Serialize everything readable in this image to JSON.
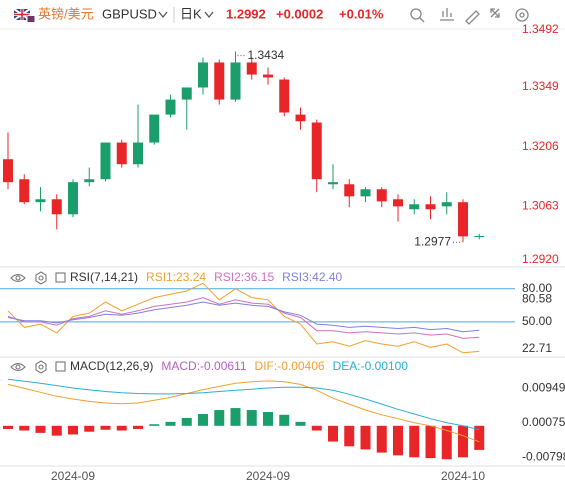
{
  "header": {
    "pair": "英镑/美元",
    "symbol": "GBPUSD",
    "period": "日K",
    "price": "1.2992",
    "change": "+0.0002",
    "change_pct": "+0.01%"
  },
  "chart_data": [
    {
      "type": "candlestick",
      "categories": [
        null,
        null,
        null,
        null,
        "2024-09",
        null,
        null,
        null,
        null,
        null,
        null,
        null,
        null,
        null,
        null,
        null,
        "2024-09",
        null,
        null,
        null,
        null,
        null,
        null,
        null,
        null,
        null,
        null,
        null,
        "2024-10",
        null
      ],
      "open": [
        1.3176,
        1.3128,
        1.3073,
        1.308,
        1.3044,
        1.3121,
        1.3128,
        1.3216,
        1.3164,
        1.3216,
        1.3283,
        1.3319,
        1.3348,
        1.3408,
        1.3319,
        1.3408,
        1.3379,
        1.3367,
        1.3283,
        1.3264,
        1.3116,
        1.3116,
        1.3087,
        1.3104,
        1.308,
        1.3056,
        1.3068,
        1.3063,
        1.3073,
        1.299
      ],
      "high": [
        1.324,
        1.314,
        1.3109,
        1.3092,
        1.3128,
        1.3156,
        1.3216,
        1.3223,
        1.3307,
        1.3283,
        1.3331,
        1.3348,
        1.342,
        1.3415,
        1.3434,
        1.342,
        1.3396,
        1.3372,
        1.33,
        1.3271,
        1.3164,
        1.3128,
        1.3109,
        1.3109,
        1.3092,
        1.308,
        1.3087,
        1.3097,
        1.308,
        1.2997
      ],
      "low": [
        1.3104,
        1.3068,
        1.3051,
        1.3008,
        1.3037,
        1.3111,
        1.3123,
        1.3156,
        1.3156,
        1.3211,
        1.3276,
        1.3247,
        1.3331,
        1.3307,
        1.3314,
        1.3367,
        1.3355,
        1.3279,
        1.3247,
        1.3097,
        1.3104,
        1.3061,
        1.3073,
        1.3061,
        1.3027,
        1.3044,
        1.3032,
        1.3044,
        1.2977,
        1.2984
      ],
      "close": [
        1.3121,
        1.3073,
        1.308,
        1.3044,
        1.3121,
        1.3128,
        1.3216,
        1.3164,
        1.3216,
        1.3283,
        1.3319,
        1.3348,
        1.3408,
        1.3319,
        1.3408,
        1.3379,
        1.3372,
        1.3288,
        1.3267,
        1.3128,
        1.3121,
        1.3087,
        1.3104,
        1.3075,
        1.3063,
        1.3068,
        1.3056,
        1.3073,
        1.2991,
        1.2992
      ],
      "up_color": "#1a9e6b",
      "down_color": "#e8262a",
      "annotations": [
        1.3434,
        1.2977
      ],
      "ylim": [
        1.292,
        1.3505
      ],
      "yticks": [
        1.3492,
        1.3349,
        1.3206,
        1.3063,
        {
          "value": 1.292,
          "label": "1.2920"
        }
      ],
      "tick_color": "#e8262a",
      "grid": false
    },
    {
      "type": "line",
      "title": "RSI(7,14,21)",
      "series": [
        {
          "name": "RSI1:23.24",
          "color": "#f0a030",
          "values": [
            60,
            45,
            48,
            40,
            55,
            58,
            68,
            60,
            66,
            72,
            75,
            78,
            85,
            70,
            80,
            72,
            70,
            55,
            48,
            30,
            32,
            28,
            33,
            30,
            28,
            32,
            27,
            30,
            22,
            23.24
          ]
        },
        {
          "name": "RSI2:36.15",
          "color": "#d070c0",
          "values": [
            55,
            50,
            50,
            47,
            53,
            55,
            60,
            57,
            60,
            64,
            66,
            68,
            72,
            66,
            70,
            67,
            66,
            58,
            54,
            42,
            42,
            40,
            41,
            40,
            39,
            40,
            38,
            39,
            35,
            36.15
          ]
        },
        {
          "name": "RSI3:42.40",
          "color": "#8080e0",
          "values": [
            54,
            51,
            51,
            49,
            52,
            54,
            57,
            56,
            58,
            61,
            63,
            65,
            68,
            65,
            67,
            65,
            64,
            59,
            56,
            48,
            47,
            45,
            46,
            45,
            44,
            45,
            43,
            44,
            41,
            42.4
          ]
        }
      ],
      "ylim": [
        20,
        97
      ],
      "yticks": [
        {
          "value": 80,
          "label": "80.00"
        },
        {
          "value": 50,
          "label": "50.00"
        }
      ],
      "value_tags": [
        80.58,
        22.71
      ],
      "tick_color": "#333333",
      "grid": true,
      "grid_color": "#4aa8e0"
    },
    {
      "type": "macd",
      "title": "MACD(12,26,9)",
      "series": [
        {
          "name": "MACD:-0.00611",
          "kind": "bar",
          "color": "#b760c8",
          "values": [
            -0.0008,
            -0.0012,
            -0.0018,
            -0.0025,
            -0.0022,
            -0.0015,
            -0.001,
            -0.0012,
            -0.0008,
            0.0004,
            0.001,
            0.002,
            0.003,
            0.004,
            0.0045,
            0.004,
            0.0035,
            0.0028,
            0.001,
            -0.0012,
            -0.004,
            -0.0052,
            -0.006,
            -0.0068,
            -0.0075,
            -0.008,
            -0.0082,
            -0.0085,
            -0.008,
            -0.00611
          ]
        },
        {
          "name": "DIF:-0.00406",
          "kind": "line",
          "color": "#f0a030",
          "values": [
            0.0105,
            0.0095,
            0.0085,
            0.0075,
            0.0068,
            0.0062,
            0.0058,
            0.0056,
            0.0058,
            0.0065,
            0.0072,
            0.0082,
            0.0092,
            0.01,
            0.0108,
            0.0112,
            0.0114,
            0.0112,
            0.0105,
            0.009,
            0.007,
            0.0055,
            0.004,
            0.0028,
            0.0018,
            0.0008,
            0.0,
            -0.0012,
            -0.0025,
            -0.00406
          ]
        },
        {
          "name": "DEA:-0.00100",
          "kind": "line",
          "color": "#2ab0d0",
          "values": [
            0.0118,
            0.0113,
            0.0108,
            0.0102,
            0.0096,
            0.0091,
            0.0087,
            0.0084,
            0.0082,
            0.0081,
            0.0081,
            0.0082,
            0.0084,
            0.0087,
            0.009,
            0.0093,
            0.0096,
            0.0098,
            0.0098,
            0.0096,
            0.009,
            0.008,
            0.0068,
            0.0055,
            0.0042,
            0.003,
            0.0018,
            0.0008,
            0.0,
            -0.001
          ]
        }
      ],
      "up_color": "#1a9e6b",
      "down_color": "#e8262a",
      "ylim": [
        -0.0102,
        0.0167
      ],
      "yticks": [
        0.00949,
        0.00075,
        -0.00798
      ],
      "tick_color": "#333333",
      "grid": false
    }
  ]
}
